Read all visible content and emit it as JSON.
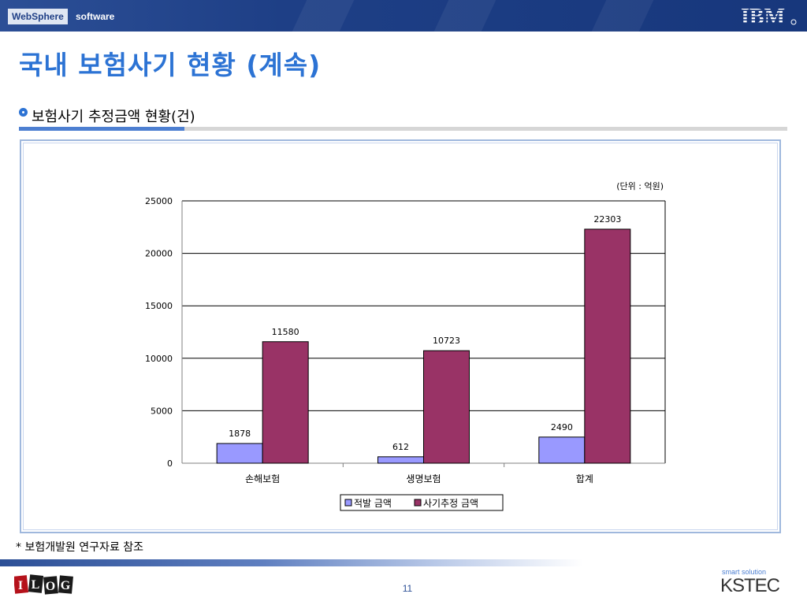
{
  "header": {
    "brand_box": "WebSphere",
    "brand_text": "software",
    "logo_text": "IBM"
  },
  "slide": {
    "title": "국내 보험사기 현황 (계속)",
    "subtitle": "보험사기 추정금액 현황(건)",
    "footnote": "* 보험개발원 연구자료 참조",
    "page_number": "11"
  },
  "footer": {
    "ilog_letters": [
      "I",
      "L",
      "O",
      "G"
    ],
    "kstec_tagline": "smart solution",
    "kstec_name": "KSTEC"
  },
  "colors": {
    "title_blue": "#2c73d4",
    "header_navy": "#1f3f86",
    "series1": "#9999ff",
    "series2": "#993366"
  },
  "chart_data": {
    "type": "bar",
    "unit_note": "(단위 : 억원)",
    "categories": [
      "손해보험",
      "생명보험",
      "합계"
    ],
    "series": [
      {
        "name": "적발 금액",
        "values": [
          1878,
          612,
          2490
        ],
        "color": "#9999ff"
      },
      {
        "name": "사기추정 금액",
        "values": [
          11580,
          10723,
          22303
        ],
        "color": "#993366"
      }
    ],
    "ylim": [
      0,
      25000
    ],
    "yticks": [
      0,
      5000,
      10000,
      15000,
      20000,
      25000
    ],
    "grid": true,
    "legend": "bottom"
  }
}
